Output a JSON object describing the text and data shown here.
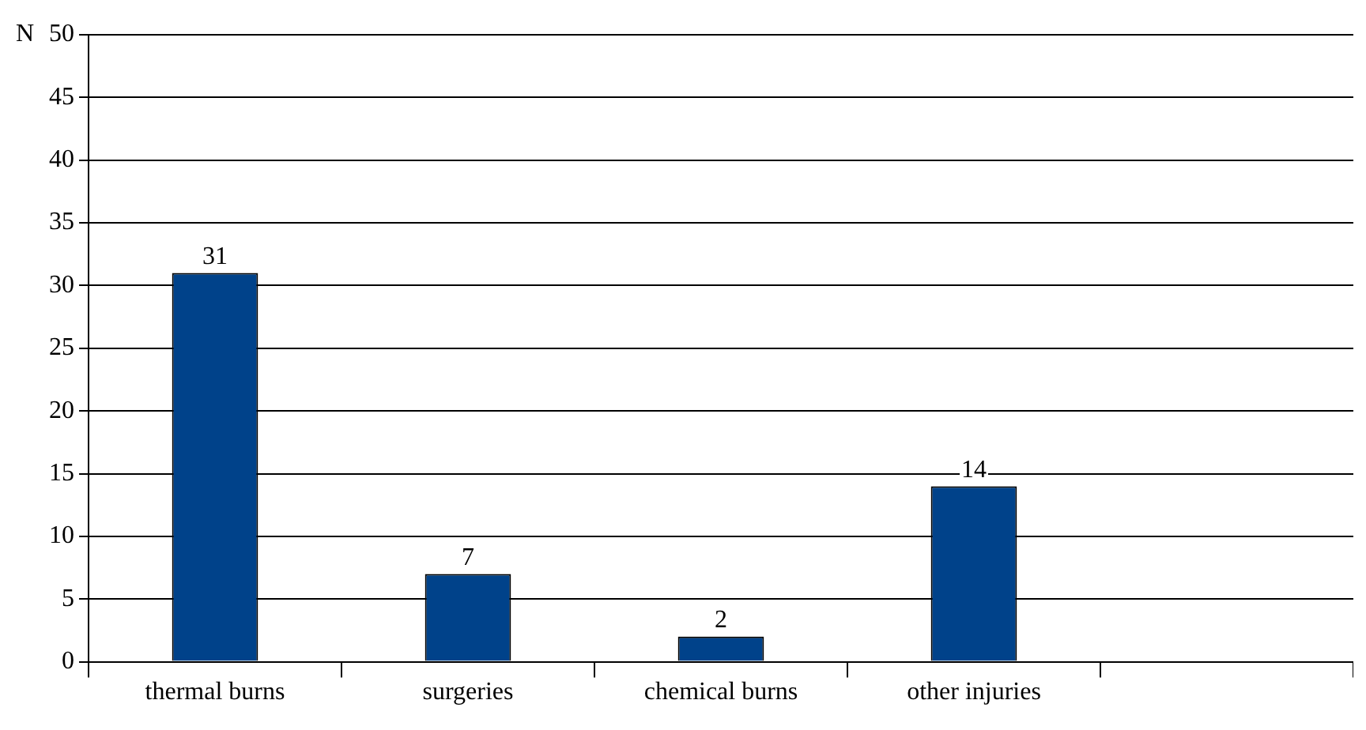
{
  "chart_data": {
    "type": "bar",
    "ylabel": "N",
    "categories": [
      "thermal burns",
      "surgeries",
      "chemical burns",
      "other injuries",
      null
    ],
    "values": [
      31,
      7,
      2,
      14,
      null
    ],
    "color": "#00428a",
    "ylim": [
      0,
      50
    ],
    "yticks": [
      0,
      5,
      10,
      15,
      20,
      25,
      30,
      35,
      40,
      45,
      50
    ],
    "grid": "y",
    "data_labels": true
  }
}
